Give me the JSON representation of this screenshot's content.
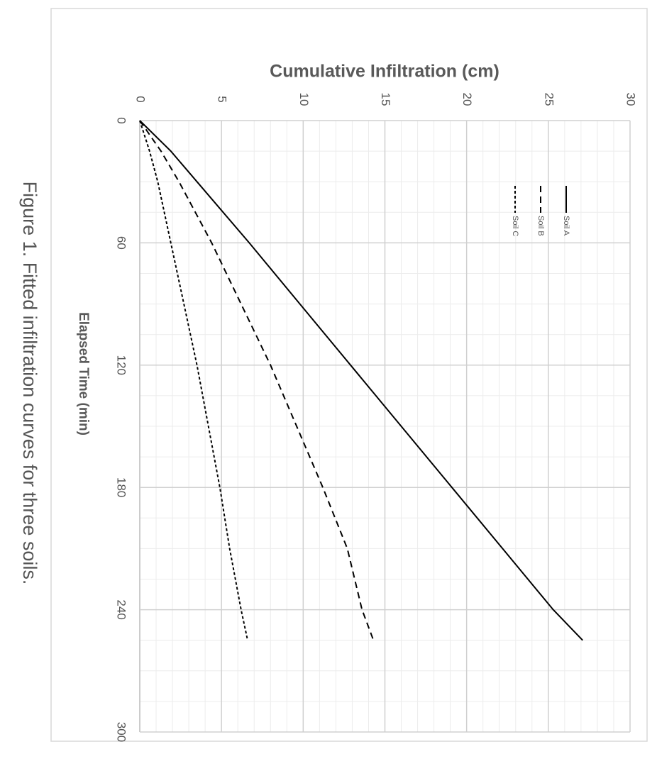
{
  "chart_data": {
    "type": "line",
    "caption": "Figure 1. Fitted infiltration curves for three soils.",
    "x_label": "Elapsed Time (min)",
    "y_label": "Cumulative Infiltration (cm)",
    "x": [
      0,
      15,
      30,
      60,
      90,
      120,
      150,
      180,
      210,
      240,
      255
    ],
    "series": [
      {
        "name": "Soil A",
        "color": "#000000",
        "dash": "solid",
        "values": [
          0,
          1.9,
          3.5,
          6.7,
          9.8,
          12.9,
          16.0,
          19.1,
          22.2,
          25.3,
          27.1
        ]
      },
      {
        "name": "Soil B",
        "color": "#000000",
        "dash": "dashed",
        "values": [
          0,
          1.3,
          2.4,
          4.4,
          6.2,
          8.0,
          9.6,
          11.2,
          12.7,
          13.6,
          14.3
        ]
      },
      {
        "name": "Soil C",
        "color": "#000000",
        "dash": "dotted",
        "values": [
          0,
          0.6,
          1.1,
          1.9,
          2.7,
          3.5,
          4.2,
          4.9,
          5.5,
          6.2,
          6.6
        ]
      }
    ],
    "xlim": [
      0,
      300
    ],
    "xticks": [
      0,
      60,
      120,
      180,
      240,
      300
    ],
    "ylim": [
      0,
      30
    ],
    "yticks": [
      0,
      5,
      10,
      15,
      20,
      25,
      30
    ],
    "grid": true,
    "minor_grid": true,
    "rotated": true
  }
}
